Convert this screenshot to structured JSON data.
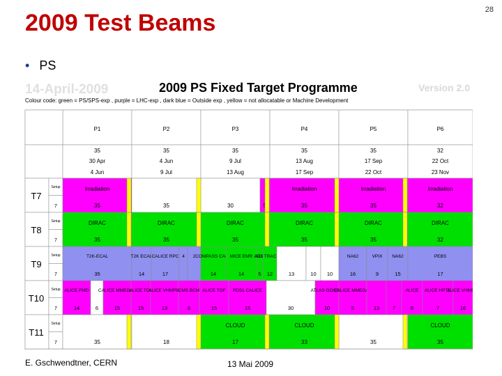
{
  "slide": {
    "title": "2009 Test Beams",
    "page_number": "28",
    "bullet": "PS",
    "footer_author": "E. Gschwendtner, CERN",
    "footer_date": "13 Mai 2009"
  },
  "programme": {
    "date_stamp": "14-April-2009",
    "title": "2009 PS Fixed Target Programme",
    "version": "Version 2.0",
    "color_code": "Colour code: green = PS/SPS-exp , purple = LHC-exp , dark blue = Outside exp , yellow = not allocatable or Machine Development",
    "colors": {
      "green": "#00e000",
      "purple": "#ff00ff",
      "blue": "#9090f0",
      "yellow": "#ffff00",
      "white": "#ffffff",
      "orange": "#ff9900"
    },
    "periods": [
      {
        "name": "P1",
        "days": "35",
        "start": "30 Apr",
        "end": "4 Jun"
      },
      {
        "name": "P2",
        "days": "35",
        "start": "4 Jun",
        "end": "9 Jul"
      },
      {
        "name": "P3",
        "days": "35",
        "start": "9 Jul",
        "end": "13 Aug"
      },
      {
        "name": "P4",
        "days": "35",
        "start": "13 Aug",
        "end": "17 Sep"
      },
      {
        "name": "P5",
        "days": "35",
        "start": "17 Sep",
        "end": "22 Oct"
      },
      {
        "name": "P6",
        "days": "32",
        "start": "22 Oct",
        "end": "23 Nov"
      }
    ],
    "row_small": {
      "setup": "Setup",
      "days": "7"
    },
    "beamlines": [
      {
        "name": "T7",
        "blocks": [
          {
            "from": "P1",
            "to": "P1",
            "color": "purple",
            "label": "Irradiation",
            "days": "35"
          },
          {
            "from": "P2",
            "to": "P2",
            "color": "white",
            "label": "",
            "days": "35"
          },
          {
            "from": "P3a",
            "to": "P3a",
            "color": "white",
            "label": "",
            "days": "30"
          },
          {
            "from": "P3b",
            "to": "P3b",
            "color": "purple",
            "label": "",
            "days": "5"
          },
          {
            "from": "P4",
            "to": "P4",
            "color": "purple",
            "label": "Irradiation",
            "days": "35"
          },
          {
            "from": "P5",
            "to": "P5",
            "color": "purple",
            "label": "Irradiation",
            "days": "35"
          },
          {
            "from": "P6",
            "to": "P6",
            "color": "purple",
            "label": "Irradiation",
            "days": "32"
          }
        ]
      },
      {
        "name": "T8",
        "blocks": [
          {
            "from": "P1",
            "to": "P1",
            "color": "green",
            "label": "DIRAC",
            "days": "35"
          },
          {
            "from": "P2",
            "to": "P2",
            "color": "green",
            "label": "DIRAC",
            "days": "35"
          },
          {
            "from": "P3",
            "to": "P3",
            "color": "green",
            "label": "DIRAC",
            "days": "35"
          },
          {
            "from": "P4",
            "to": "P4",
            "color": "green",
            "label": "DIRAC",
            "days": "35"
          },
          {
            "from": "P5",
            "to": "P5",
            "color": "green",
            "label": "DIRAC",
            "days": "35"
          },
          {
            "from": "P6",
            "to": "P6",
            "color": "green",
            "label": "DIRAC",
            "days": "32"
          }
        ]
      },
      {
        "name": "T9",
        "blocks": [
          {
            "label": "T2K-ECAL",
            "days": "35",
            "color": "blue"
          },
          {
            "label": "T2K ECAL",
            "days": "14",
            "color": "blue"
          },
          {
            "label": "CALICE RPC",
            "days": "17",
            "color": "blue"
          },
          {
            "label": "4",
            "days": "",
            "color": "blue"
          },
          {
            "label": "2",
            "days": "",
            "color": "blue"
          },
          {
            "label": "COMPASS CALO",
            "days": "14",
            "color": "green"
          },
          {
            "label": "MICE EMR",
            "days": "14",
            "color": "green"
          },
          {
            "label": "AD3",
            "days": "5",
            "color": "green"
          },
          {
            "label": "AD3 TRACKER",
            "days": "12",
            "color": "green"
          },
          {
            "label": "",
            "days": "13",
            "color": "white"
          },
          {
            "label": "",
            "days": "10",
            "color": "white"
          },
          {
            "label": "",
            "days": "10",
            "color": "white"
          },
          {
            "label": "NA62",
            "days": "16",
            "color": "blue"
          },
          {
            "label": "VPIX",
            "days": "9",
            "color": "blue"
          },
          {
            "label": "NA62",
            "days": "15",
            "color": "blue"
          },
          {
            "label": "PEBS",
            "days": "17",
            "color": "blue"
          }
        ]
      },
      {
        "name": "T10",
        "labels": [
          "ALICE PMD",
          "CALICE MMEGAS",
          "ALICE TOF",
          "ALICE VHMPID",
          "CMS BCM",
          "ALICE TOF",
          "RD51 CALICE",
          "ATLAS GOSSIP",
          "CALICE MMEGAS",
          "ALICE",
          "ALICE HPTD",
          "ALICE VHMPID"
        ],
        "days": [
          "14",
          "6",
          "15",
          "15",
          "13",
          "8",
          "15",
          "15",
          "30",
          "10",
          "5",
          "13",
          "7",
          "8",
          "7",
          "16",
          "8"
        ]
      },
      {
        "name": "T11",
        "blocks": [
          {
            "label": "",
            "days": "35",
            "color": "white"
          },
          {
            "label": "",
            "days": "18",
            "color": "white"
          },
          {
            "label": "CLOUD",
            "days": "17",
            "color": "green"
          },
          {
            "label": "CLOUD",
            "days": "33",
            "color": "green"
          },
          {
            "label": "",
            "days": "35",
            "color": "white"
          },
          {
            "label": "CLOUD",
            "days": "35",
            "color": "green"
          },
          {
            "label": "CLOUD",
            "days": "32",
            "color": "green"
          }
        ]
      }
    ]
  }
}
